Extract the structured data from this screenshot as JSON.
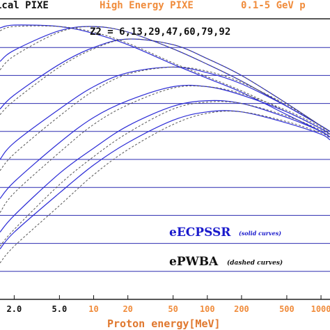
{
  "header": {
    "left_label": "ical PIXE",
    "mid_label": "High Energy PIXE",
    "right_label": "0.1-5 GeV p",
    "left_color": "#111111",
    "orange_color": "#f08c3c"
  },
  "z2_label": "Z2 = 6,13,29,47,60,79,92",
  "legend": {
    "eecpssr": "eECPSSR",
    "eecpssr_note": "(solid curves)",
    "epwba": "ePWBA",
    "epwba_note": "(dashed curves)",
    "eecpssr_color": "#1a1acc",
    "epwba_color": "#111111"
  },
  "xaxis": {
    "label": "Proton energy[MeV]",
    "label_color": "#e0782e",
    "scale": "log",
    "ticks_black": [
      "2.0",
      "5.0"
    ],
    "ticks_orange": [
      "10",
      "20",
      "50",
      "100",
      "200",
      "500",
      "1000"
    ]
  },
  "chart_data": {
    "type": "line",
    "x_scale": "log",
    "xlabel": "Proton energy[MeV]",
    "xlim": [
      1.5,
      1200
    ],
    "ylim": [
      0,
      100
    ],
    "grid": "horizontal",
    "series_color": "#2b2bd6",
    "dashed_color": "#555555",
    "series": [
      {
        "style": "solid",
        "x": [
          1.5,
          2,
          5,
          10,
          20,
          50,
          100,
          200,
          500,
          1000,
          1200
        ],
        "values": [
          97,
          98,
          97.5,
          95,
          91,
          84,
          79,
          74,
          66,
          60,
          58
        ]
      },
      {
        "style": "dashed",
        "x": [
          1.5,
          2,
          5,
          10,
          20,
          50,
          100,
          200,
          500,
          1000,
          1200
        ],
        "values": [
          96,
          97.5,
          97.5,
          95.5,
          91.5,
          84.5,
          79.5,
          74.5,
          67,
          61,
          59
        ]
      },
      {
        "style": "solid",
        "x": [
          1.5,
          2,
          5,
          10,
          20,
          50,
          100,
          200,
          500,
          1000,
          1200
        ],
        "values": [
          85,
          89,
          96,
          97.5,
          95.5,
          89.5,
          84,
          78,
          69,
          62,
          60
        ]
      },
      {
        "style": "dashed",
        "x": [
          1.5,
          2,
          5,
          10,
          20,
          50,
          100,
          200,
          500,
          1000,
          1200
        ],
        "values": [
          82,
          87,
          95.5,
          97.5,
          95.5,
          89.5,
          84,
          78,
          69,
          62,
          60
        ]
      },
      {
        "style": "solid",
        "x": [
          1.5,
          2,
          5,
          10,
          20,
          50,
          100,
          200,
          500,
          1000,
          1200
        ],
        "values": [
          68,
          73,
          84,
          90,
          93,
          91,
          86,
          80,
          70,
          62,
          60
        ]
      },
      {
        "style": "dashed",
        "x": [
          1.5,
          2,
          5,
          10,
          20,
          50,
          100,
          200,
          500,
          1000,
          1200
        ],
        "values": [
          66,
          71,
          83,
          89.5,
          93,
          91,
          86,
          80,
          70,
          62,
          60
        ]
      },
      {
        "style": "solid",
        "x": [
          1.5,
          2,
          5,
          10,
          20,
          50,
          100,
          200,
          500,
          1000,
          1200
        ],
        "values": [
          50,
          56,
          68,
          76,
          81,
          83,
          81,
          77,
          69,
          62,
          60
        ]
      },
      {
        "style": "dashed",
        "x": [
          1.5,
          2,
          5,
          10,
          20,
          50,
          100,
          200,
          500,
          1000,
          1200
        ],
        "values": [
          46,
          52,
          65.5,
          74.5,
          80.5,
          83,
          81.5,
          77.5,
          69.5,
          62,
          60
        ]
      },
      {
        "style": "solid",
        "x": [
          1.5,
          2,
          5,
          10,
          20,
          50,
          100,
          200,
          500,
          1000,
          1200
        ],
        "values": [
          36,
          42,
          56,
          65,
          71,
          76,
          76,
          73,
          67,
          61,
          59
        ]
      },
      {
        "style": "dashed",
        "x": [
          1.5,
          2,
          5,
          10,
          20,
          50,
          100,
          200,
          500,
          1000,
          1200
        ],
        "values": [
          31,
          38,
          52.5,
          62.5,
          69.5,
          75.5,
          76,
          73.5,
          67.5,
          61.5,
          59
        ]
      },
      {
        "style": "solid",
        "x": [
          1.5,
          2,
          5,
          10,
          20,
          50,
          100,
          200,
          500,
          1000,
          1200
        ],
        "values": [
          24,
          30,
          45,
          54,
          62,
          69,
          71,
          70,
          65,
          60,
          58
        ]
      },
      {
        "style": "dashed",
        "x": [
          1.5,
          2,
          5,
          10,
          20,
          50,
          100,
          200,
          500,
          1000,
          1200
        ],
        "values": [
          19,
          25,
          41,
          51,
          59.5,
          68,
          70.5,
          70,
          65.5,
          60.5,
          58.5
        ]
      },
      {
        "style": "solid",
        "x": [
          1.5,
          2,
          5,
          10,
          20,
          50,
          100,
          200,
          500,
          1000,
          1200
        ],
        "values": [
          18,
          24,
          38,
          48,
          56,
          64,
          67,
          67,
          63,
          59,
          57
        ]
      },
      {
        "style": "dashed",
        "x": [
          1.5,
          2,
          5,
          10,
          20,
          50,
          100,
          200,
          500,
          1000,
          1200
        ],
        "values": [
          13,
          19,
          33.5,
          44.5,
          53.5,
          62.5,
          66.5,
          67,
          63.5,
          59.5,
          57.5
        ]
      }
    ]
  }
}
